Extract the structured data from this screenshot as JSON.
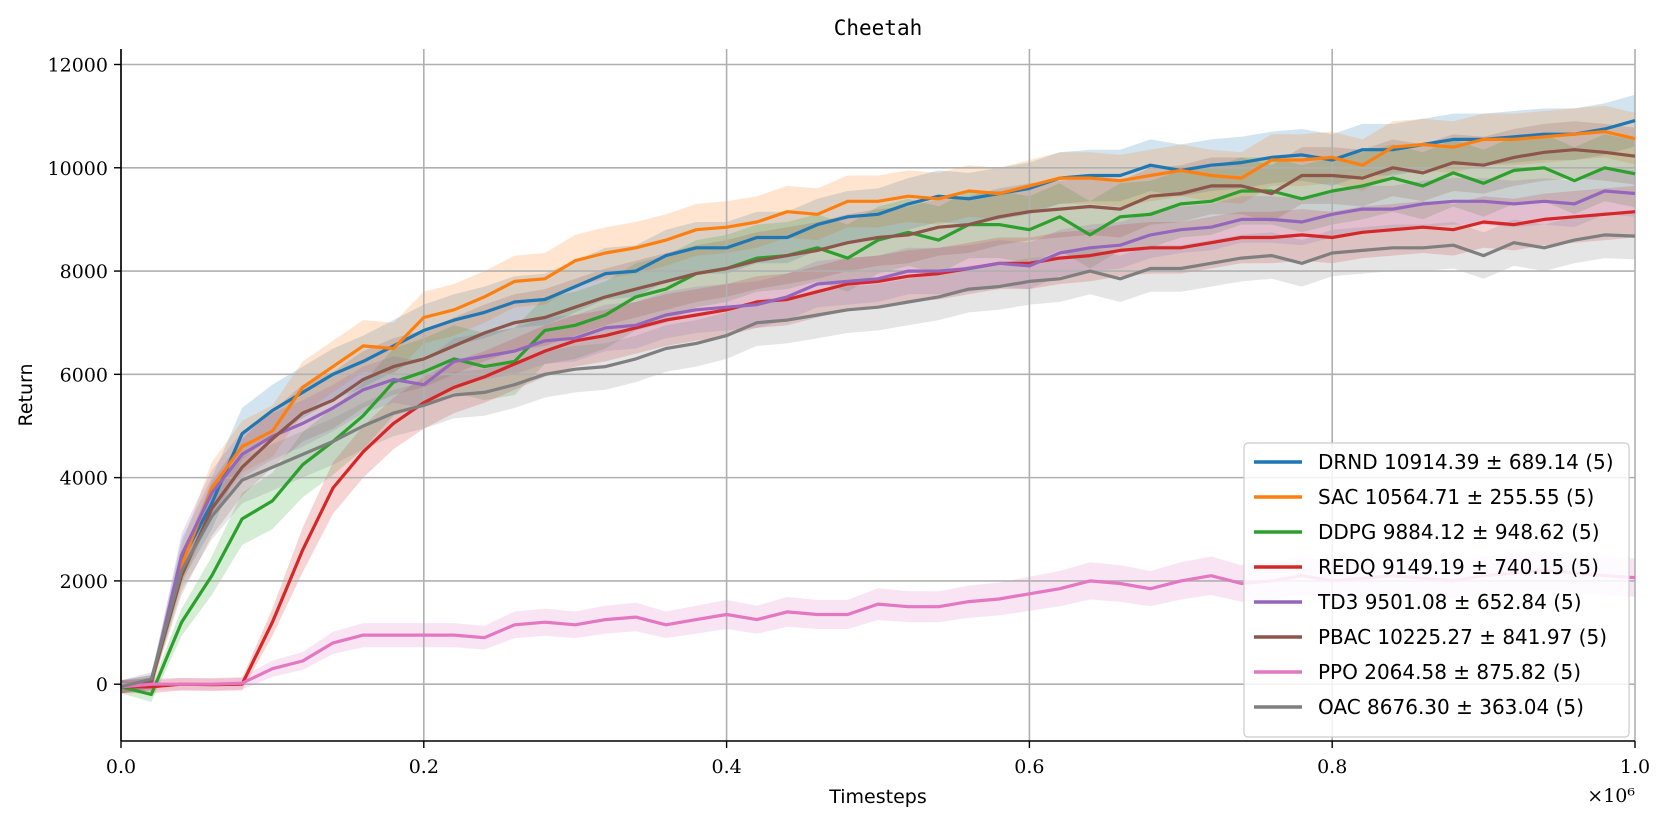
{
  "chart_data": {
    "type": "line",
    "title": "Cheetah",
    "xlabel": "Timesteps",
    "ylabel": "Return",
    "x_multiplier_label": "×10⁶",
    "xlim": [
      0,
      1.0
    ],
    "ylim": [
      -1100,
      12300
    ],
    "xticks": [
      0.0,
      0.2,
      0.4,
      0.6,
      0.8,
      1.0
    ],
    "xtick_labels": [
      "0.0",
      "0.2",
      "0.4",
      "0.6",
      "0.8",
      "1.0"
    ],
    "yticks": [
      0,
      2000,
      4000,
      6000,
      8000,
      10000,
      12000
    ],
    "ytick_labels": [
      "0",
      "2000",
      "4000",
      "6000",
      "8000",
      "10000",
      "12000"
    ],
    "grid": true,
    "legend_position": "bottom-right",
    "x": [
      0.0,
      0.02,
      0.04,
      0.06,
      0.08,
      0.1,
      0.12,
      0.14,
      0.16,
      0.18,
      0.2,
      0.22,
      0.24,
      0.26,
      0.28,
      0.3,
      0.32,
      0.34,
      0.36,
      0.38,
      0.4,
      0.42,
      0.44,
      0.46,
      0.48,
      0.5,
      0.52,
      0.54,
      0.56,
      0.58,
      0.6,
      0.62,
      0.64,
      0.66,
      0.68,
      0.7,
      0.72,
      0.74,
      0.76,
      0.78,
      0.8,
      0.82,
      0.84,
      0.86,
      0.88,
      0.9,
      0.92,
      0.94,
      0.96,
      0.98,
      1.0
    ],
    "series": [
      {
        "name": "DRND",
        "legend_label": "DRND 10914.39 ± 689.14 (5)",
        "color": "#1f77b4",
        "values": [
          -50,
          50,
          2400,
          3500,
          4850,
          5300,
          5650,
          6000,
          6250,
          6550,
          6850,
          7050,
          7200,
          7400,
          7450,
          7700,
          7950,
          8000,
          8300,
          8450,
          8450,
          8650,
          8650,
          8900,
          9050,
          9100,
          9300,
          9450,
          9400,
          9500,
          9600,
          9800,
          9850,
          9850,
          10050,
          9950,
          10050,
          10100,
          10200,
          10250,
          10150,
          10350,
          10350,
          10450,
          10550,
          10550,
          10600,
          10650,
          10650,
          10750,
          10914
        ],
        "spread": 500
      },
      {
        "name": "SAC",
        "legend_label": "SAC 10564.71 ± 255.55 (5)",
        "color": "#ff7f0e",
        "values": [
          -50,
          0,
          2300,
          3800,
          4600,
          4900,
          5750,
          6150,
          6550,
          6500,
          7100,
          7250,
          7500,
          7800,
          7850,
          8200,
          8350,
          8450,
          8600,
          8800,
          8850,
          8950,
          9150,
          9100,
          9350,
          9350,
          9450,
          9400,
          9550,
          9500,
          9650,
          9800,
          9800,
          9750,
          9850,
          9950,
          9850,
          9800,
          10150,
          10150,
          10200,
          10050,
          10400,
          10450,
          10400,
          10550,
          10550,
          10600,
          10650,
          10700,
          10564
        ],
        "spread": 500
      },
      {
        "name": "DDPG",
        "legend_label": "DDPG 9884.12 ± 948.62 (5)",
        "color": "#2ca02c",
        "values": [
          -50,
          -200,
          1200,
          2100,
          3200,
          3550,
          4250,
          4700,
          5200,
          5850,
          6050,
          6300,
          6150,
          6250,
          6850,
          6950,
          7150,
          7500,
          7650,
          7950,
          8050,
          8250,
          8300,
          8450,
          8250,
          8600,
          8750,
          8600,
          8900,
          8900,
          8800,
          9050,
          8700,
          9050,
          9100,
          9300,
          9350,
          9550,
          9550,
          9400,
          9550,
          9650,
          9800,
          9650,
          9900,
          9700,
          9950,
          10000,
          9750,
          10000,
          9884
        ],
        "spread": 650
      },
      {
        "name": "REDQ",
        "legend_label": "REDQ 9149.19 ± 740.15 (5)",
        "color": "#d62728",
        "values": [
          -50,
          -50,
          0,
          -10,
          0,
          1200,
          2600,
          3800,
          4500,
          5050,
          5450,
          5750,
          5950,
          6200,
          6450,
          6650,
          6750,
          6900,
          7050,
          7150,
          7250,
          7400,
          7450,
          7600,
          7750,
          7800,
          7900,
          7950,
          8050,
          8150,
          8150,
          8250,
          8300,
          8400,
          8450,
          8450,
          8550,
          8650,
          8650,
          8700,
          8650,
          8750,
          8800,
          8850,
          8800,
          8950,
          8900,
          9000,
          9050,
          9100,
          9149
        ],
        "spread": 500
      },
      {
        "name": "TD3",
        "legend_label": "TD3 9501.08 ± 652.84 (5)",
        "color": "#9467bd",
        "values": [
          -50,
          0,
          2500,
          3700,
          4450,
          4800,
          5050,
          5350,
          5700,
          5900,
          5800,
          6250,
          6350,
          6450,
          6650,
          6700,
          6900,
          6950,
          7150,
          7250,
          7300,
          7350,
          7500,
          7750,
          7800,
          7850,
          8000,
          8000,
          8050,
          8150,
          8100,
          8350,
          8450,
          8500,
          8700,
          8800,
          8850,
          9000,
          9000,
          8950,
          9100,
          9200,
          9200,
          9300,
          9350,
          9350,
          9300,
          9350,
          9300,
          9550,
          9501
        ],
        "spread": 450
      },
      {
        "name": "PBAC",
        "legend_label": "PBAC 10225.27 ± 841.97 (5)",
        "color": "#8c564b",
        "values": [
          -50,
          50,
          2100,
          3400,
          4200,
          4750,
          5250,
          5500,
          5900,
          6150,
          6300,
          6550,
          6800,
          7000,
          7100,
          7300,
          7500,
          7650,
          7800,
          7950,
          8050,
          8200,
          8300,
          8400,
          8550,
          8650,
          8700,
          8850,
          8900,
          9050,
          9150,
          9200,
          9250,
          9200,
          9450,
          9500,
          9650,
          9650,
          9500,
          9850,
          9850,
          9800,
          10000,
          9900,
          10100,
          10050,
          10200,
          10300,
          10350,
          10300,
          10225
        ],
        "spread": 550
      },
      {
        "name": "PPO",
        "legend_label": "PPO 2064.58 ± 875.82 (5)",
        "color": "#e377c2",
        "values": [
          -50,
          0,
          0,
          0,
          20,
          300,
          450,
          800,
          950,
          950,
          950,
          950,
          900,
          1150,
          1200,
          1150,
          1250,
          1300,
          1150,
          1250,
          1350,
          1250,
          1400,
          1350,
          1350,
          1550,
          1500,
          1500,
          1600,
          1650,
          1750,
          1850,
          2000,
          1950,
          1850,
          2000,
          2100,
          1950,
          2000,
          2100,
          2000,
          2050,
          2100,
          2050,
          2000,
          2100,
          2150,
          2200,
          2150,
          2100,
          2064
        ],
        "spread": 600
      },
      {
        "name": "OAC",
        "legend_label": "OAC 8676.30 ± 363.04 (5)",
        "color": "#7f7f7f",
        "values": [
          -50,
          100,
          2200,
          3250,
          3950,
          4200,
          4450,
          4700,
          5000,
          5250,
          5400,
          5600,
          5650,
          5800,
          6000,
          6100,
          6150,
          6300,
          6500,
          6600,
          6750,
          7000,
          7050,
          7150,
          7250,
          7300,
          7400,
          7500,
          7650,
          7700,
          7800,
          7850,
          8000,
          7850,
          8050,
          8050,
          8150,
          8250,
          8300,
          8150,
          8350,
          8400,
          8450,
          8450,
          8500,
          8300,
          8550,
          8450,
          8600,
          8700,
          8676
        ],
        "spread": 450
      }
    ]
  }
}
